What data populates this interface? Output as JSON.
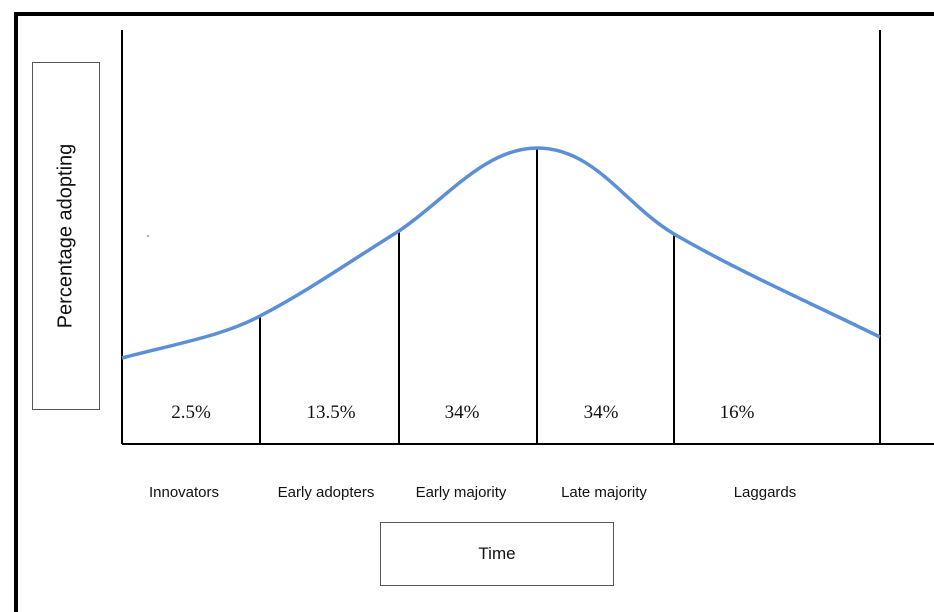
{
  "diagram": {
    "y_axis_label": "Percentage adopting",
    "x_axis_label": "Time",
    "curve_color": "#5b8fd6",
    "segments": [
      {
        "category": "Innovators",
        "percent": "2.5%"
      },
      {
        "category": "Early adopters",
        "percent": "13.5%"
      },
      {
        "category": "Early majority",
        "percent": "34%"
      },
      {
        "category": "Late majority",
        "percent": "34%"
      },
      {
        "category": "Laggards",
        "percent": "16%"
      }
    ]
  }
}
